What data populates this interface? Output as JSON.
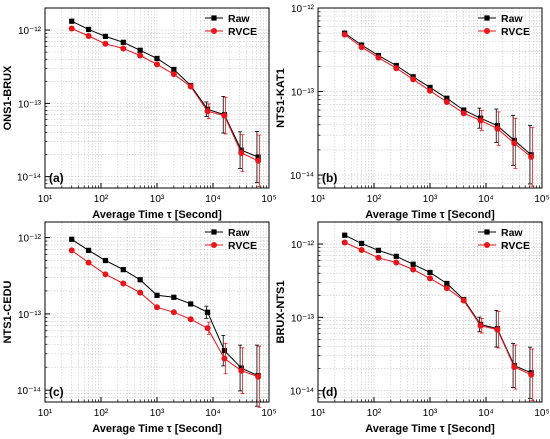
{
  "figure": {
    "xlabel": "Average Time τ [Second]"
  },
  "chart_data": [
    {
      "panel": "(a)",
      "type": "line",
      "ylabel": "ONS1-BRUX",
      "xscale": "log",
      "yscale": "log",
      "xlim": [
        10,
        100000
      ],
      "ylim": [
        7e-15,
        2e-12
      ],
      "x_ticks": [
        10,
        100,
        1000,
        10000,
        100000
      ],
      "x_tick_labels": [
        "10¹",
        "10²",
        "10³",
        "10⁴",
        "10⁵"
      ],
      "y_ticks": [
        1e-14,
        1e-13,
        1e-12
      ],
      "y_tick_labels": [
        "10⁻¹⁴",
        "10⁻¹³",
        "10⁻¹²"
      ],
      "grid": true,
      "legend_position": "top-right",
      "series": [
        {
          "name": "Raw",
          "color": "#000000",
          "marker": "square",
          "x": [
            30,
            60,
            120,
            250,
            500,
            1000,
            2000,
            4000,
            8000,
            16000,
            32000,
            64000
          ],
          "y": [
            1.32e-12,
            1.02e-12,
            8.2e-13,
            6.8e-13,
            5.3e-13,
            4.1e-13,
            2.9e-13,
            1.75e-13,
            8.3e-14,
            7e-14,
            2.3e-14,
            1.85e-14
          ],
          "err": [
            0,
            0,
            0,
            0,
            0,
            0,
            0,
            0,
            0.1,
            0.25,
            0.25,
            0.35
          ]
        },
        {
          "name": "RVCE",
          "color": "#e8151b",
          "marker": "circle",
          "x": [
            30,
            60,
            120,
            250,
            500,
            1000,
            2000,
            4000,
            8000,
            16000,
            32000,
            64000
          ],
          "y": [
            1.05e-12,
            8.3e-13,
            6.5e-13,
            5.6e-13,
            4.5e-13,
            3.4e-13,
            2.5e-13,
            1.7e-13,
            7.8e-14,
            6.8e-14,
            2.1e-14,
            1.65e-14
          ],
          "err": [
            0,
            0,
            0,
            0,
            0,
            0,
            0,
            0,
            0.1,
            0.25,
            0.25,
            0.35
          ]
        }
      ]
    },
    {
      "panel": "(b)",
      "type": "line",
      "ylabel": "NTS1-KAT1",
      "xscale": "log",
      "yscale": "log",
      "xlim": [
        10,
        100000
      ],
      "ylim": [
        7e-15,
        1e-12
      ],
      "x_ticks": [
        10,
        100,
        1000,
        10000,
        100000
      ],
      "x_tick_labels": [
        "10¹",
        "10²",
        "10³",
        "10⁴",
        "10⁵"
      ],
      "y_ticks": [
        1e-14,
        1e-13,
        1e-12
      ],
      "y_tick_labels": [
        "10⁻¹⁴",
        "10⁻¹³",
        "10⁻¹²"
      ],
      "grid": true,
      "legend_position": "top-right",
      "series": [
        {
          "name": "Raw",
          "color": "#000000",
          "marker": "square",
          "x": [
            30,
            60,
            120,
            250,
            500,
            1000,
            2000,
            4000,
            8000,
            16000,
            32000,
            64000
          ],
          "y": [
            5e-13,
            3.6e-13,
            2.7e-13,
            2.05e-13,
            1.5e-13,
            1.12e-13,
            8.3e-14,
            6e-14,
            4.8e-14,
            3.9e-14,
            2.6e-14,
            1.75e-14
          ],
          "err": [
            0,
            0,
            0,
            0,
            0,
            0,
            0,
            0,
            0.12,
            0.2,
            0.3,
            0.35
          ]
        },
        {
          "name": "RVCE",
          "color": "#e8151b",
          "marker": "circle",
          "x": [
            30,
            60,
            120,
            250,
            500,
            1000,
            2000,
            4000,
            8000,
            16000,
            32000,
            64000
          ],
          "y": [
            4.8e-13,
            3.4e-13,
            2.55e-13,
            1.9e-13,
            1.4e-13,
            1.02e-13,
            7.5e-14,
            5.5e-14,
            4.5e-14,
            3.6e-14,
            2.4e-14,
            1.65e-14
          ],
          "err": [
            0,
            0,
            0,
            0,
            0,
            0,
            0,
            0,
            0.12,
            0.2,
            0.3,
            0.35
          ]
        }
      ]
    },
    {
      "panel": "(c)",
      "type": "line",
      "ylabel": "NTS1-CEDU",
      "xscale": "log",
      "yscale": "log",
      "xlim": [
        10,
        100000
      ],
      "ylim": [
        7e-15,
        1.6e-12
      ],
      "x_ticks": [
        10,
        100,
        1000,
        10000,
        100000
      ],
      "x_tick_labels": [
        "10¹",
        "10²",
        "10³",
        "10⁴",
        "10⁵"
      ],
      "y_ticks": [
        1e-14,
        1e-13,
        1e-12
      ],
      "y_tick_labels": [
        "10⁻¹⁴",
        "10⁻¹³",
        "10⁻¹²"
      ],
      "grid": true,
      "legend_position": "top-right",
      "series": [
        {
          "name": "Raw",
          "color": "#000000",
          "marker": "square",
          "x": [
            30,
            60,
            120,
            250,
            500,
            1000,
            2000,
            4000,
            8000,
            16000,
            32000,
            64000
          ],
          "y": [
            9.5e-13,
            6.8e-13,
            5e-13,
            3.8e-13,
            2.8e-13,
            1.75e-13,
            1.65e-13,
            1.35e-13,
            1.05e-13,
            3.3e-14,
            1.95e-14,
            1.55e-14
          ],
          "err": [
            0,
            0,
            0,
            0,
            0,
            0,
            0,
            0,
            0.08,
            0.2,
            0.3,
            0.4
          ]
        },
        {
          "name": "RVCE",
          "color": "#e8151b",
          "marker": "circle",
          "x": [
            30,
            60,
            120,
            250,
            500,
            1000,
            2000,
            4000,
            8000,
            16000,
            32000,
            64000
          ],
          "y": [
            6.8e-13,
            4.7e-13,
            3.3e-13,
            2.5e-13,
            1.9e-13,
            1.22e-13,
            1.05e-13,
            8.5e-14,
            6.5e-14,
            2.6e-14,
            1.8e-14,
            1.5e-14
          ],
          "err": [
            0,
            0,
            0,
            0,
            0,
            0,
            0,
            0,
            0.08,
            0.2,
            0.3,
            0.4
          ]
        }
      ]
    },
    {
      "panel": "(d)",
      "type": "line",
      "ylabel": "BRUX-NTS1",
      "xscale": "log",
      "yscale": "log",
      "xlim": [
        10,
        100000
      ],
      "ylim": [
        7e-15,
        2e-12
      ],
      "x_ticks": [
        10,
        100,
        1000,
        10000,
        100000
      ],
      "x_tick_labels": [
        "10¹",
        "10²",
        "10³",
        "10⁴",
        "10⁵"
      ],
      "y_ticks": [
        1e-14,
        1e-13,
        1e-12
      ],
      "y_tick_labels": [
        "10⁻¹⁴",
        "10⁻¹³",
        "10⁻¹²"
      ],
      "grid": true,
      "legend_position": "top-right",
      "series": [
        {
          "name": "Raw",
          "color": "#000000",
          "marker": "square",
          "x": [
            30,
            60,
            120,
            250,
            500,
            1000,
            2000,
            4000,
            8000,
            16000,
            32000,
            64000
          ],
          "y": [
            1.32e-12,
            1.02e-12,
            8.2e-13,
            6.8e-13,
            5.3e-13,
            4.1e-13,
            2.9e-13,
            1.75e-13,
            8e-14,
            7e-14,
            2.2e-14,
            1.75e-14
          ],
          "err": [
            0,
            0,
            0,
            0,
            0,
            0,
            0,
            0,
            0.1,
            0.25,
            0.3,
            0.35
          ]
        },
        {
          "name": "RVCE",
          "color": "#e8151b",
          "marker": "circle",
          "x": [
            30,
            60,
            120,
            250,
            500,
            1000,
            2000,
            4000,
            8000,
            16000,
            32000,
            64000
          ],
          "y": [
            1.05e-12,
            8.3e-13,
            6.5e-13,
            5.6e-13,
            4.5e-13,
            3.4e-13,
            2.5e-13,
            1.7e-13,
            7.7e-14,
            6.8e-14,
            2.1e-14,
            1.65e-14
          ],
          "err": [
            0,
            0,
            0,
            0,
            0,
            0,
            0,
            0,
            0.1,
            0.25,
            0.3,
            0.35
          ]
        }
      ]
    }
  ]
}
